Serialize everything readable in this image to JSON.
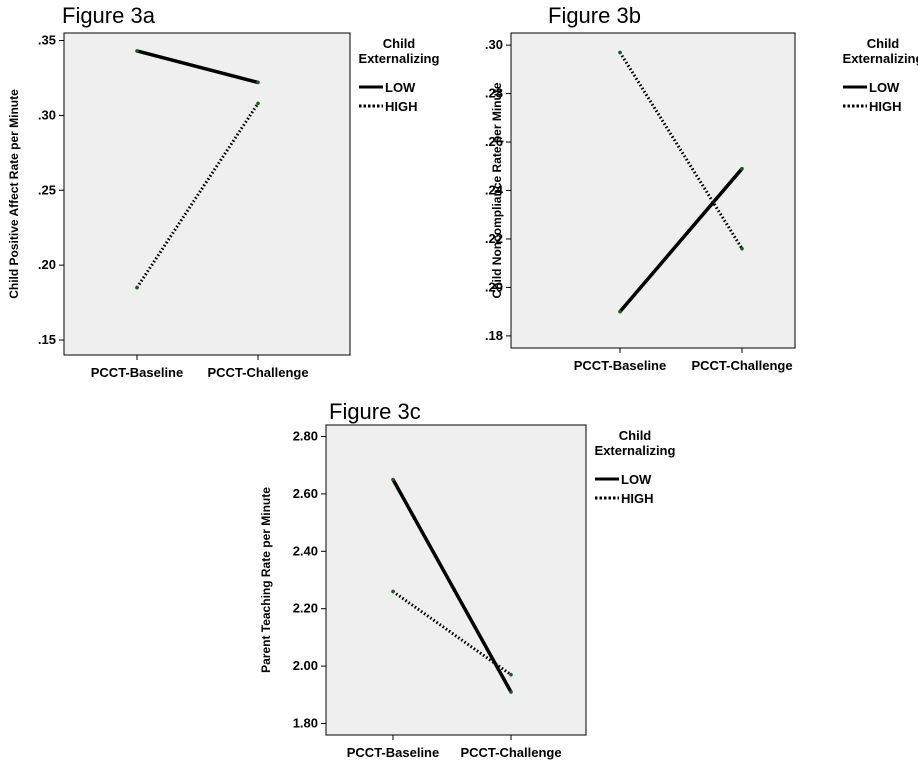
{
  "chart_data": [
    {
      "type": "line",
      "title": "Figure 3a",
      "xlabel": "",
      "ylabel": "Child Positive Affect Rate per Minute",
      "categories": [
        "PCCT-Baseline",
        "PCCT-Challenge"
      ],
      "ylim": [
        0.14,
        0.355
      ],
      "yticks": [
        ".15",
        ".20",
        ".25",
        ".30",
        ".35"
      ],
      "ytick_values": [
        0.15,
        0.2,
        0.25,
        0.3,
        0.35
      ],
      "legend_title": "Child Externalizing",
      "legend_title_lines": [
        "Child",
        "Externalizing"
      ],
      "legend_position": "right",
      "series": [
        {
          "name": "LOW",
          "style": "solid",
          "values": [
            0.343,
            0.322
          ]
        },
        {
          "name": "HIGH",
          "style": "dotted",
          "values": [
            0.185,
            0.308
          ]
        }
      ]
    },
    {
      "type": "line",
      "title": "Figure 3b",
      "xlabel": "",
      "ylabel": "Child Noncompliance Rate per Minute",
      "categories": [
        "PCCT-Baseline",
        "PCCT-Challenge"
      ],
      "ylim": [
        0.175,
        0.305
      ],
      "yticks": [
        ".18",
        ".20",
        ".22",
        ".24",
        ".26",
        ".28",
        ".30"
      ],
      "ytick_values": [
        0.18,
        0.2,
        0.22,
        0.24,
        0.26,
        0.28,
        0.3
      ],
      "legend_title": "Child Externalizing",
      "legend_title_lines": [
        "Child",
        "Externalizing"
      ],
      "legend_position": "right",
      "series": [
        {
          "name": "LOW",
          "style": "solid",
          "values": [
            0.19,
            0.249
          ]
        },
        {
          "name": "HIGH",
          "style": "dotted",
          "values": [
            0.297,
            0.216
          ]
        }
      ]
    },
    {
      "type": "line",
      "title": "Figure 3c",
      "xlabel": "",
      "ylabel": "Parent Teaching Rate per Minute",
      "categories": [
        "PCCT-Baseline",
        "PCCT-Challenge"
      ],
      "ylim": [
        1.76,
        2.84
      ],
      "yticks": [
        "1.80",
        "2.00",
        "2.20",
        "2.40",
        "2.60",
        "2.80"
      ],
      "ytick_values": [
        1.8,
        2.0,
        2.2,
        2.4,
        2.6,
        2.8
      ],
      "legend_title": "Child Externalizing",
      "legend_title_lines": [
        "Child",
        "Externalizing"
      ],
      "legend_position": "right",
      "series": [
        {
          "name": "LOW",
          "style": "solid",
          "values": [
            2.65,
            1.91
          ]
        },
        {
          "name": "HIGH",
          "style": "dotted",
          "values": [
            2.26,
            1.97
          ]
        }
      ]
    }
  ]
}
